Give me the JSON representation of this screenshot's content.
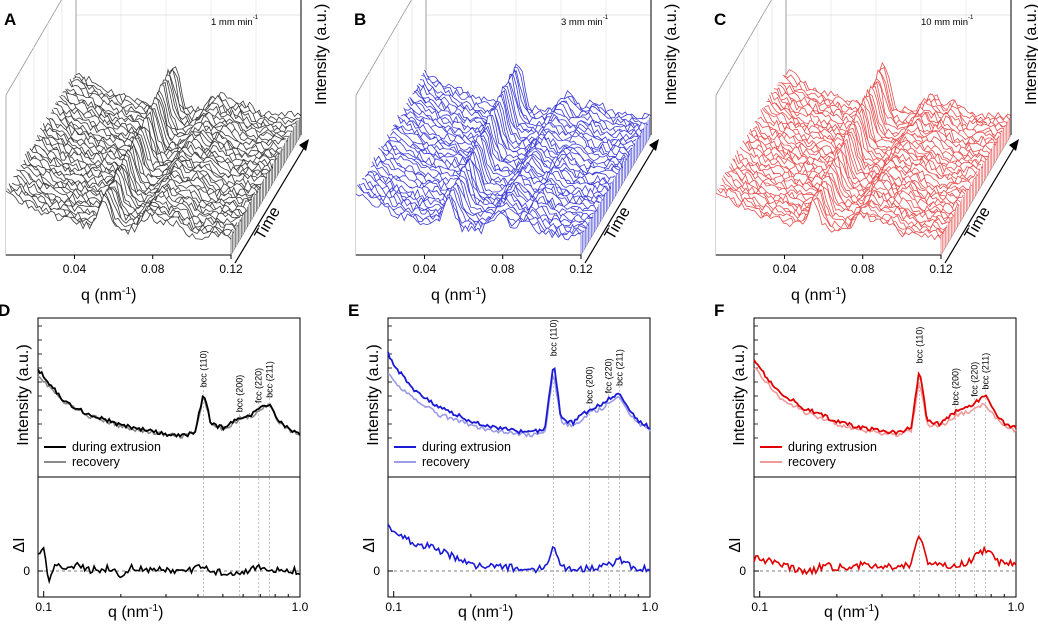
{
  "chart_data": [
    {
      "panel": "A",
      "type": "area",
      "rate": "1 mm min",
      "rate_sup": "-1",
      "xlabel": "q (nm",
      "xlabel_sup": "-1",
      "xlabel_end": ")",
      "ylabel": "Intensity (a.u.)",
      "zlabel": "Time",
      "xticks": [
        "0.04",
        "0.08",
        "0.12"
      ],
      "color": "#3a3a3a",
      "peaks_q": [
        0.055,
        0.078,
        0.09
      ]
    },
    {
      "panel": "B",
      "type": "area",
      "rate": "3 mm min",
      "rate_sup": "-1",
      "xlabel": "q (nm",
      "xlabel_sup": "-1",
      "xlabel_end": ")",
      "ylabel": "Intensity (a.u.)",
      "zlabel": "Time",
      "xticks": [
        "0.04",
        "0.08",
        "0.12"
      ],
      "color": "#3b3bd6",
      "peaks_q": [
        0.052,
        0.078,
        0.092
      ]
    },
    {
      "panel": "C",
      "type": "area",
      "rate": "10 mm min",
      "rate_sup": "-1",
      "xlabel": "q (nm",
      "xlabel_sup": "-1",
      "xlabel_end": ")",
      "ylabel": "Intensity (a.u.)",
      "zlabel": "Time",
      "xticks": [
        "0.04",
        "0.08",
        "0.12"
      ],
      "color": "#e8504f",
      "peaks_q": [
        0.055,
        0.08,
        0.092
      ]
    },
    {
      "panel": "D",
      "type": "line",
      "xscale": "log",
      "xlim": [
        0.095,
        1.0
      ],
      "xlabel": "q (nm",
      "xlabel_sup": "-1",
      "xlabel_end": ")",
      "ylabel_top": "Intensity (a.u.)",
      "ylabel_bottom": "ΔI",
      "xticks": [
        "0.1",
        "1.0"
      ],
      "zero_tick": "0",
      "peak_labels": [
        {
          "q": 0.42,
          "text": "bcc (110)"
        },
        {
          "q": 0.58,
          "text": "bcc (200)"
        },
        {
          "q": 0.69,
          "text": "fcc (220)"
        },
        {
          "q": 0.76,
          "text": "bcc (211)"
        }
      ],
      "legend": [
        "during extrusion",
        "recovery"
      ],
      "series": [
        {
          "name": "during extrusion",
          "color": "#000000",
          "q": [
            0.095,
            0.1,
            0.12,
            0.15,
            0.2,
            0.25,
            0.3,
            0.35,
            0.39,
            0.42,
            0.45,
            0.5,
            0.55,
            0.6,
            0.65,
            0.7,
            0.76,
            0.82,
            0.9,
            1.0
          ],
          "I": [
            0.82,
            0.76,
            0.55,
            0.44,
            0.35,
            0.31,
            0.27,
            0.26,
            0.3,
            0.62,
            0.36,
            0.33,
            0.38,
            0.43,
            0.44,
            0.5,
            0.53,
            0.4,
            0.32,
            0.28
          ]
        },
        {
          "name": "recovery",
          "color": "#8a8a8a",
          "q": [
            0.095,
            0.1,
            0.12,
            0.15,
            0.2,
            0.25,
            0.3,
            0.35,
            0.39,
            0.42,
            0.45,
            0.5,
            0.55,
            0.6,
            0.65,
            0.7,
            0.76,
            0.82,
            0.9,
            1.0
          ],
          "I": [
            0.78,
            0.72,
            0.54,
            0.43,
            0.34,
            0.3,
            0.27,
            0.26,
            0.29,
            0.59,
            0.35,
            0.32,
            0.37,
            0.42,
            0.43,
            0.49,
            0.52,
            0.39,
            0.31,
            0.27
          ]
        },
        {
          "name": "ΔI",
          "color": "#000000",
          "panel": "bottom",
          "q": [
            0.095,
            0.1,
            0.105,
            0.11,
            0.13,
            0.15,
            0.18,
            0.2,
            0.22,
            0.25,
            0.3,
            0.35,
            0.4,
            0.42,
            0.45,
            0.5,
            0.6,
            0.7,
            0.8,
            0.9,
            1.0
          ],
          "I": [
            0.3,
            0.35,
            -0.2,
            0.05,
            0.1,
            0.02,
            0.05,
            -0.1,
            0.08,
            0.0,
            0.02,
            -0.02,
            0.04,
            0.12,
            0.0,
            -0.03,
            0.0,
            0.05,
            0.0,
            0.02,
            -0.02
          ]
        }
      ]
    },
    {
      "panel": "E",
      "type": "line",
      "xscale": "log",
      "xlim": [
        0.095,
        1.0
      ],
      "xlabel": "q (nm",
      "xlabel_sup": "-1",
      "xlabel_end": ")",
      "ylabel_top": "Intensity (a.u.)",
      "ylabel_bottom": "ΔI",
      "xticks": [
        "0.1",
        "1.0"
      ],
      "zero_tick": "0",
      "peak_labels": [
        {
          "q": 0.42,
          "text": "bcc (110)"
        },
        {
          "q": 0.58,
          "text": "bcc (200)"
        },
        {
          "q": 0.69,
          "text": "fcc (220)"
        },
        {
          "q": 0.76,
          "text": "bcc (211)"
        }
      ],
      "legend": [
        "during extrusion",
        "recovery"
      ],
      "series": [
        {
          "name": "during extrusion",
          "color": "#1a1ad6",
          "q": [
            0.095,
            0.1,
            0.12,
            0.15,
            0.2,
            0.25,
            0.3,
            0.35,
            0.39,
            0.42,
            0.45,
            0.5,
            0.55,
            0.6,
            0.65,
            0.7,
            0.76,
            0.82,
            0.9,
            1.0
          ],
          "I": [
            0.95,
            0.85,
            0.65,
            0.5,
            0.38,
            0.33,
            0.3,
            0.29,
            0.33,
            0.88,
            0.4,
            0.37,
            0.45,
            0.5,
            0.52,
            0.58,
            0.63,
            0.5,
            0.38,
            0.33
          ]
        },
        {
          "name": "recovery",
          "color": "#9b9be6",
          "q": [
            0.095,
            0.1,
            0.12,
            0.15,
            0.2,
            0.25,
            0.3,
            0.35,
            0.39,
            0.42,
            0.45,
            0.5,
            0.55,
            0.6,
            0.65,
            0.7,
            0.76,
            0.82,
            0.9,
            1.0
          ],
          "I": [
            0.8,
            0.72,
            0.56,
            0.44,
            0.35,
            0.3,
            0.28,
            0.27,
            0.31,
            0.8,
            0.37,
            0.34,
            0.42,
            0.47,
            0.49,
            0.55,
            0.59,
            0.47,
            0.36,
            0.31
          ]
        },
        {
          "name": "ΔI",
          "color": "#1a1ad6",
          "panel": "bottom",
          "q": [
            0.095,
            0.1,
            0.11,
            0.12,
            0.14,
            0.16,
            0.18,
            0.2,
            0.25,
            0.3,
            0.35,
            0.4,
            0.42,
            0.45,
            0.5,
            0.6,
            0.7,
            0.76,
            0.85,
            1.0
          ],
          "I": [
            0.75,
            0.65,
            0.55,
            0.45,
            0.4,
            0.3,
            0.2,
            0.1,
            0.08,
            0.05,
            0.03,
            0.06,
            0.5,
            0.05,
            0.02,
            0.05,
            0.1,
            0.2,
            0.05,
            0.02
          ]
        }
      ]
    },
    {
      "panel": "F",
      "type": "line",
      "xscale": "log",
      "xlim": [
        0.095,
        1.0
      ],
      "xlabel": "q (nm",
      "xlabel_sup": "-1",
      "xlabel_end": ")",
      "ylabel_top": "Intensity (a.u.)",
      "ylabel_bottom": "ΔI",
      "xticks": [
        "0.1",
        "1.0"
      ],
      "zero_tick": "0",
      "peak_labels": [
        {
          "q": 0.42,
          "text": "bcc (110)"
        },
        {
          "q": 0.58,
          "text": "bcc (200)"
        },
        {
          "q": 0.69,
          "text": "fcc (220)"
        },
        {
          "q": 0.76,
          "text": "bcc (211)"
        }
      ],
      "legend": [
        "during extrusion",
        "recovery"
      ],
      "series": [
        {
          "name": "during extrusion",
          "color": "#e00000",
          "q": [
            0.095,
            0.1,
            0.12,
            0.15,
            0.2,
            0.25,
            0.3,
            0.35,
            0.39,
            0.42,
            0.45,
            0.5,
            0.55,
            0.6,
            0.65,
            0.7,
            0.76,
            0.82,
            0.9,
            1.0
          ],
          "I": [
            0.9,
            0.82,
            0.62,
            0.49,
            0.38,
            0.33,
            0.3,
            0.29,
            0.34,
            0.82,
            0.39,
            0.36,
            0.43,
            0.49,
            0.5,
            0.55,
            0.6,
            0.47,
            0.37,
            0.33
          ]
        },
        {
          "name": "recovery",
          "color": "#f09a9a",
          "q": [
            0.095,
            0.1,
            0.12,
            0.15,
            0.2,
            0.25,
            0.3,
            0.35,
            0.39,
            0.42,
            0.45,
            0.5,
            0.55,
            0.6,
            0.65,
            0.7,
            0.76,
            0.82,
            0.9,
            1.0
          ],
          "I": [
            0.84,
            0.77,
            0.58,
            0.46,
            0.36,
            0.31,
            0.28,
            0.27,
            0.31,
            0.72,
            0.36,
            0.33,
            0.4,
            0.45,
            0.46,
            0.5,
            0.53,
            0.43,
            0.34,
            0.3
          ]
        },
        {
          "name": "ΔI",
          "color": "#e00000",
          "panel": "bottom",
          "q": [
            0.095,
            0.1,
            0.12,
            0.14,
            0.16,
            0.18,
            0.2,
            0.25,
            0.3,
            0.35,
            0.39,
            0.42,
            0.45,
            0.5,
            0.55,
            0.6,
            0.65,
            0.7,
            0.76,
            0.85,
            1.0
          ],
          "I": [
            0.2,
            0.2,
            0.1,
            0.02,
            0.0,
            0.1,
            0.05,
            0.1,
            0.05,
            0.1,
            0.1,
            0.65,
            0.15,
            0.1,
            0.08,
            0.1,
            0.15,
            0.25,
            0.35,
            0.15,
            0.1
          ]
        }
      ]
    }
  ]
}
